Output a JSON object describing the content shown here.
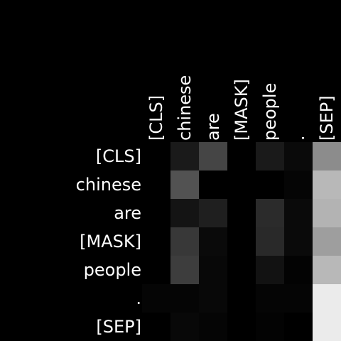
{
  "chart_data": {
    "type": "heatmap",
    "colormap": "grayscale",
    "background": "#000000",
    "text_color": "#ffffff",
    "x_labels": [
      "[CLS]",
      "chinese",
      "are",
      "[MASK]",
      "people",
      ".",
      "[SEP]"
    ],
    "y_labels": [
      "[CLS]",
      "chinese",
      "are",
      "[MASK]",
      "people",
      ".",
      "[SEP]"
    ],
    "values": [
      [
        0.0,
        0.1,
        0.27,
        0.0,
        0.1,
        0.04,
        0.55
      ],
      [
        0.0,
        0.32,
        0.0,
        0.0,
        0.0,
        0.02,
        0.72
      ],
      [
        0.0,
        0.08,
        0.12,
        0.0,
        0.17,
        0.04,
        0.7
      ],
      [
        0.0,
        0.22,
        0.04,
        0.0,
        0.16,
        0.04,
        0.62
      ],
      [
        0.0,
        0.24,
        0.03,
        0.0,
        0.07,
        0.01,
        0.72
      ],
      [
        0.02,
        0.02,
        0.03,
        0.0,
        0.02,
        0.02,
        0.92
      ],
      [
        0.0,
        0.03,
        0.02,
        0.0,
        0.01,
        0.0,
        0.92
      ]
    ],
    "value_range": [
      0,
      1
    ]
  }
}
